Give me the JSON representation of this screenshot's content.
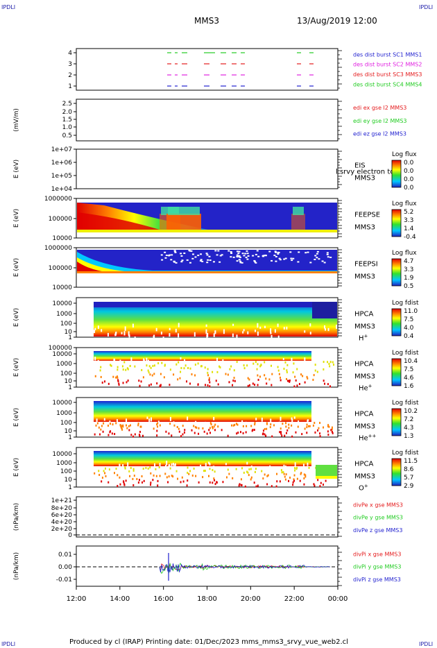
{
  "corner_labels": {
    "top_left": "IPDLI",
    "top_right": "IPDLI",
    "bottom_left": "IPDLI",
    "bottom_right": "IPDLI"
  },
  "header": {
    "spacecraft": "MMS3",
    "datetime": "13/Aug/2019 12:00"
  },
  "footer": {
    "text": "Produced by cl (IRAP)   Printing date: 01/Dec/2023   mms_mms3_srvy_vue_web2.cl"
  },
  "colors": {
    "red": "#e41a1c",
    "green": "#22cc22",
    "blue": "#1f1fcf",
    "magenta": "#e020e0"
  },
  "chart_data": [
    {
      "type": "line",
      "id": "burst",
      "yticks": [
        "4",
        "3",
        "2",
        "1"
      ],
      "legend": [
        {
          "text": "des dist burst SC1 MMS1",
          "color": "#1f1fcf"
        },
        {
          "text": "des dist burst SC2 MMS2",
          "color": "#e020e0"
        },
        {
          "text": "des dist burst SC3 MMS3",
          "color": "#e41a1c"
        },
        {
          "text": "des dist burst SC4 MMS4",
          "color": "#22cc22"
        }
      ]
    },
    {
      "type": "line",
      "id": "edi",
      "ylabel": "(mV/m)",
      "yticks": [
        "2.5",
        "2.0",
        "1.5",
        "1.0",
        "0.5"
      ],
      "legend": [
        {
          "text": "edi ex gse l2 MMS3",
          "color": "#e41a1c"
        },
        {
          "text": "edi ey gse l2 MMS3",
          "color": "#22cc22"
        },
        {
          "text": "edi ez gse l2 MMS3",
          "color": "#1f1fcf"
        }
      ]
    },
    {
      "type": "heatmap",
      "id": "eis",
      "ylabel": "E (eV)",
      "yticks": [
        "1e+07",
        "1e+06",
        "1e+05",
        "1e+04"
      ],
      "instrument": [
        "EIS",
        "MMS3"
      ],
      "overlay_label": "l srvy electron to",
      "colorbar_title": "Log flux",
      "colorbar_ticks": [
        "0.0",
        "0.0",
        "0.0",
        "0.0"
      ]
    },
    {
      "type": "heatmap",
      "id": "feepse",
      "ylabel": "E (eV)",
      "yticks": [
        "1000000",
        "100000",
        "10000"
      ],
      "instrument": [
        "FEEPSE",
        "MMS3"
      ],
      "colorbar_title": "Log flux",
      "colorbar_ticks": [
        "5.2",
        "3.3",
        "1.4",
        "-0.4"
      ]
    },
    {
      "type": "heatmap",
      "id": "feepsi",
      "ylabel": "E (eV)",
      "yticks": [
        "1000000",
        "100000",
        "10000"
      ],
      "instrument": [
        "FEEPSI",
        "MMS3"
      ],
      "colorbar_title": "Log flux",
      "colorbar_ticks": [
        "4.7",
        "3.3",
        "1.9",
        "0.5"
      ]
    },
    {
      "type": "heatmap",
      "id": "hpca_h",
      "ylabel": "E (eV)",
      "yticks": [
        "10000",
        "1000",
        "100",
        "10",
        "1"
      ],
      "instrument": [
        "HPCA",
        "MMS3"
      ],
      "species": {
        "base": "H",
        "charge": "+"
      },
      "colorbar_title": "Log fdist",
      "colorbar_ticks": [
        "11.0",
        "7.5",
        "4.0",
        "0.4"
      ]
    },
    {
      "type": "heatmap",
      "id": "hpca_he",
      "ylabel": "E (eV)",
      "yticks": [
        "100000",
        "10000",
        "1000",
        "100",
        "10",
        "1"
      ],
      "instrument": [
        "HPCA",
        "MMS3"
      ],
      "species": {
        "base": "He",
        "charge": "+"
      },
      "colorbar_title": "Log fdist",
      "colorbar_ticks": [
        "10.4",
        "7.5",
        "4.6",
        "1.6"
      ]
    },
    {
      "type": "heatmap",
      "id": "hpca_hepp",
      "ylabel": "E (eV)",
      "yticks": [
        "10000",
        "1000",
        "100",
        "10",
        "1"
      ],
      "instrument": [
        "HPCA",
        "MMS3"
      ],
      "species": {
        "base": "He",
        "charge": "++"
      },
      "colorbar_title": "Log fdist",
      "colorbar_ticks": [
        "10.2",
        "7.2",
        "4.3",
        "1.3"
      ]
    },
    {
      "type": "heatmap",
      "id": "hpca_o",
      "ylabel": "E (eV)",
      "yticks": [
        "10000",
        "1000",
        "100",
        "10",
        "1"
      ],
      "instrument": [
        "HPCA",
        "MMS3"
      ],
      "species": {
        "base": "O",
        "charge": "+"
      },
      "colorbar_title": "Log fdist",
      "colorbar_ticks": [
        "11.5",
        "8.6",
        "5.7",
        "2.9"
      ]
    },
    {
      "type": "line",
      "id": "divpe",
      "ylabel": "(nPa/km)",
      "yticks": [
        "1e+21",
        "8e+20",
        "6e+20",
        "4e+20",
        "2e+20",
        "0"
      ],
      "legend": [
        {
          "text": "divPe x gse MMS3",
          "color": "#e41a1c"
        },
        {
          "text": "divPe y gse MMS3",
          "color": "#22cc22"
        },
        {
          "text": "divPe z gse MMS3",
          "color": "#1f1fcf"
        }
      ]
    },
    {
      "type": "line",
      "id": "divpi",
      "ylabel": "(nPa/km)",
      "yticks": [
        "0.01",
        "0.00",
        "-0.01"
      ],
      "legend": [
        {
          "text": "divPi x gse MMS3",
          "color": "#e41a1c"
        },
        {
          "text": "divPi y gse MMS3",
          "color": "#22cc22"
        },
        {
          "text": "divPi z gse MMS3",
          "color": "#1f1fcf"
        }
      ]
    }
  ],
  "xaxis": {
    "ticks": [
      "12:00",
      "14:00",
      "16:00",
      "18:00",
      "20:00",
      "22:00",
      "00:00"
    ]
  }
}
